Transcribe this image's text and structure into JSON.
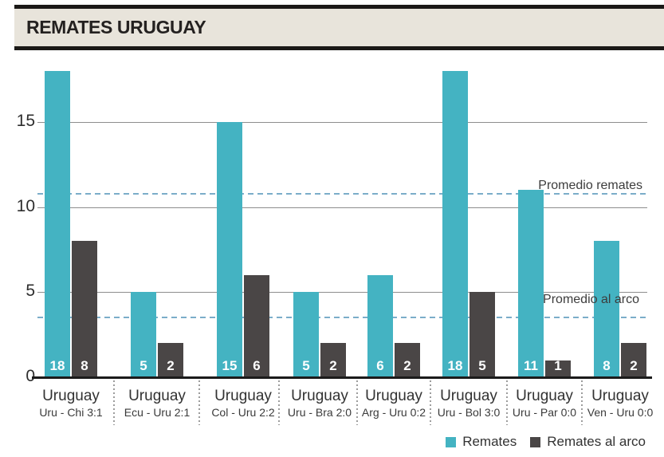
{
  "header": {
    "title": "REMATES URUGUAY"
  },
  "chart_data": {
    "type": "bar",
    "title": "REMATES URUGUAY",
    "group_label": "Uruguay",
    "categories": [
      "Uru - Chi 3:1",
      "Ecu - Uru 2:1",
      "Col - Uru 2:2",
      "Uru - Bra 2:0",
      "Arg - Uru 0:2",
      "Uru - Bol 3:0",
      "Uru - Par 0:0",
      "Ven - Uru 0:0"
    ],
    "series": [
      {
        "name": "Remates",
        "color": "#44b3c2",
        "values": [
          18,
          5,
          15,
          5,
          6,
          18,
          11,
          8
        ]
      },
      {
        "name": "Remates al arco",
        "color": "#4a4646",
        "values": [
          8,
          2,
          6,
          2,
          2,
          5,
          1,
          2
        ]
      }
    ],
    "averages": [
      {
        "label": "Promedio remates",
        "value": 10.75
      },
      {
        "label": "Promedio al arco",
        "value": 3.5
      }
    ],
    "yticks": [
      0,
      5,
      10,
      15
    ],
    "ylim": [
      0,
      18.5
    ],
    "grid": "horizontal-solid-gray",
    "avg_line_color": "#7badc9",
    "legend_position": "bottom-right"
  }
}
